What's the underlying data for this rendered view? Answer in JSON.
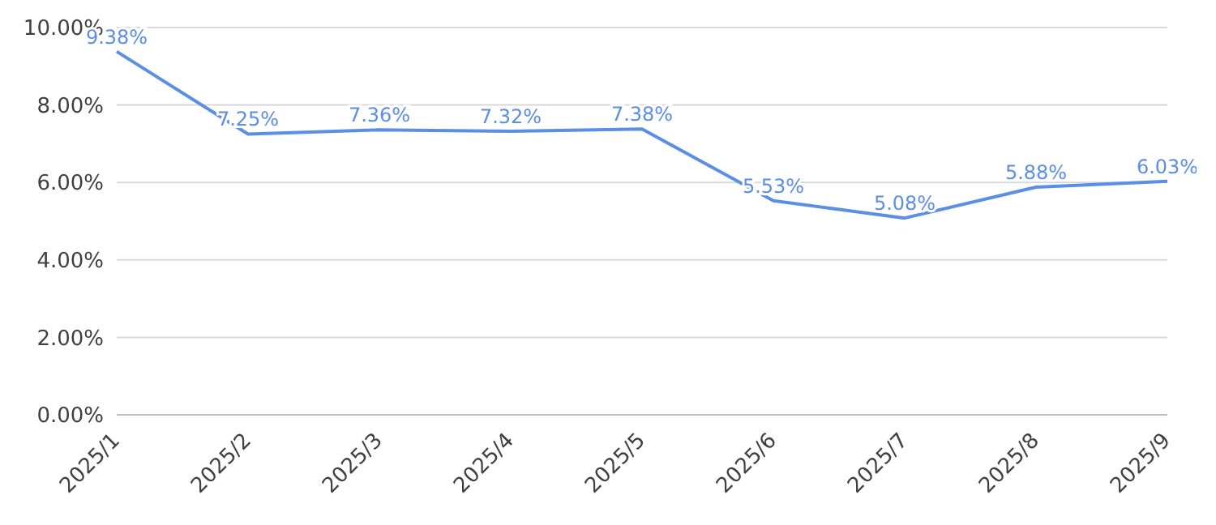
{
  "chart_data": {
    "type": "line",
    "categories": [
      "2025/1",
      "2025/2",
      "2025/3",
      "2025/4",
      "2025/5",
      "2025/6",
      "2025/7",
      "2025/8",
      "2025/9"
    ],
    "series": [
      {
        "color": "#5b8ee6",
        "values": [
          9.38,
          7.25,
          7.36,
          7.32,
          7.38,
          5.53,
          5.08,
          5.88,
          6.03
        ],
        "value_labels": [
          "9.38%",
          "7.25%",
          "7.36%",
          "7.32%",
          "7.38%",
          "5.53%",
          "5.08%",
          "5.88%",
          "6.03%"
        ]
      }
    ],
    "ylim": [
      0,
      10
    ],
    "yticks": [
      {
        "value": 0,
        "label": "0.00%"
      },
      {
        "value": 2,
        "label": "2.00%"
      },
      {
        "value": 4,
        "label": "4.00%"
      },
      {
        "value": 6,
        "label": "6.00%"
      },
      {
        "value": 8,
        "label": "8.00%"
      },
      {
        "value": 10,
        "label": "10.00%"
      }
    ],
    "grid": "y"
  }
}
